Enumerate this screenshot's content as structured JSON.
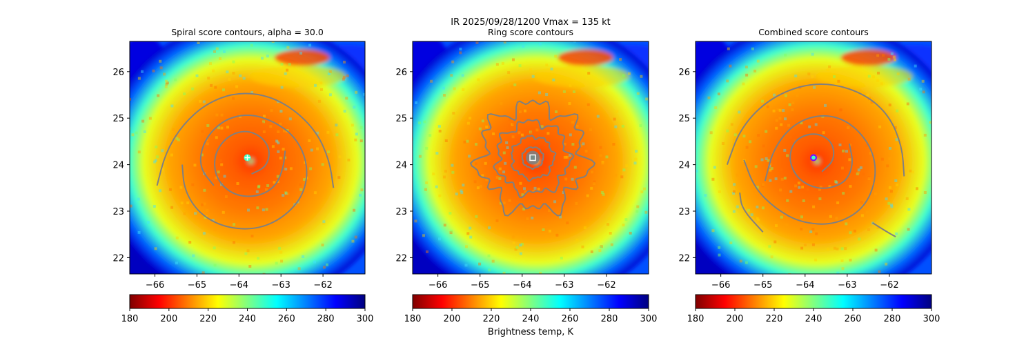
{
  "figure": {
    "suptitle_line1": "IR  2025/09/28/1200    Vmax = 135 kt",
    "colorbar_label": "Brightness temp, K"
  },
  "colormap": {
    "name": "jet_r",
    "stops": [
      "#7f0000",
      "#ff0000",
      "#ff8000",
      "#ffff00",
      "#80ff80",
      "#00ffff",
      "#0080ff",
      "#0000ff",
      "#000080"
    ]
  },
  "contour_color": "#808080",
  "chart_data": [
    {
      "type": "heatmap",
      "panel": "spiral",
      "title": "Spiral score contours, alpha = 30.0",
      "xlim": [
        -66.6,
        -61.0
      ],
      "ylim": [
        21.65,
        26.65
      ],
      "xticks": [
        -66,
        -65,
        -64,
        -63,
        -62
      ],
      "xtick_labels": [
        "−66",
        "−65",
        "−64",
        "−63",
        "−62"
      ],
      "yticks": [
        22,
        23,
        24,
        25,
        26
      ],
      "ytick_labels": [
        "22",
        "23",
        "24",
        "25",
        "26"
      ],
      "center": {
        "lon": -63.8,
        "lat": 24.15
      },
      "marker": {
        "symbol": "plus",
        "color": "#ffffff"
      },
      "contours": [
        {
          "name": "inner spiral",
          "points": [
            [
              -63.7,
              23.8
            ],
            [
              -63.35,
              23.95
            ],
            [
              -63.25,
              24.3
            ],
            [
              -63.45,
              24.6
            ],
            [
              -63.85,
              24.75
            ],
            [
              -64.3,
              24.6
            ],
            [
              -64.6,
              24.2
            ],
            [
              -64.55,
              23.7
            ],
            [
              -64.15,
              23.35
            ],
            [
              -63.6,
              23.3
            ],
            [
              -63.15,
              23.5
            ],
            [
              -62.95,
              23.9
            ],
            [
              -62.9,
              24.3
            ]
          ]
        },
        {
          "name": "middle spiral",
          "points": [
            [
              -64.6,
              23.55
            ],
            [
              -64.95,
              23.95
            ],
            [
              -64.85,
              24.5
            ],
            [
              -64.4,
              24.95
            ],
            [
              -63.8,
              25.1
            ],
            [
              -63.2,
              24.95
            ],
            [
              -62.65,
              24.6
            ],
            [
              -62.35,
              24.0
            ],
            [
              -62.45,
              23.35
            ],
            [
              -62.95,
              22.85
            ],
            [
              -63.6,
              22.6
            ],
            [
              -64.35,
              22.65
            ],
            [
              -64.95,
              22.95
            ],
            [
              -65.3,
              23.45
            ],
            [
              -65.35,
              24.0
            ]
          ]
        },
        {
          "name": "outer spiral",
          "points": [
            [
              -65.95,
              23.55
            ],
            [
              -65.75,
              24.25
            ],
            [
              -65.35,
              24.85
            ],
            [
              -64.8,
              25.3
            ],
            [
              -64.1,
              25.55
            ],
            [
              -63.35,
              25.5
            ],
            [
              -62.7,
              25.2
            ],
            [
              -62.15,
              24.7
            ],
            [
              -61.85,
              24.1
            ],
            [
              -61.75,
              23.5
            ]
          ]
        }
      ]
    },
    {
      "type": "heatmap",
      "panel": "ring",
      "title": "Ring score contours",
      "xlim": [
        -66.6,
        -61.0
      ],
      "ylim": [
        21.65,
        26.65
      ],
      "xticks": [
        -66,
        -65,
        -64,
        -63,
        -62
      ],
      "xtick_labels": [
        "−66",
        "−65",
        "−64",
        "−63",
        "−62"
      ],
      "yticks": [
        22,
        23,
        24,
        25,
        26
      ],
      "ytick_labels": [
        "22",
        "23",
        "24",
        "25",
        "26"
      ],
      "center": {
        "lon": -63.75,
        "lat": 24.15
      },
      "marker": {
        "symbol": "square",
        "color": "#ffffff"
      },
      "ring_contours": [
        {
          "name": "outer ring",
          "radius_deg": 1.25,
          "wobble": 0.22
        },
        {
          "name": "middle ring",
          "radius_deg": 0.85,
          "wobble": 0.16
        },
        {
          "name": "inner ring",
          "radius_deg": 0.5,
          "wobble": 0.12
        },
        {
          "name": "core ring",
          "radius_deg": 0.25,
          "wobble": 0.08
        }
      ]
    },
    {
      "type": "heatmap",
      "panel": "combined",
      "title": "Combined score contours",
      "xlim": [
        -66.6,
        -61.0
      ],
      "ylim": [
        21.65,
        26.65
      ],
      "xticks": [
        -66,
        -65,
        -64,
        -63,
        -62
      ],
      "xtick_labels": [
        "−66",
        "−65",
        "−64",
        "−63",
        "−62"
      ],
      "yticks": [
        22,
        23,
        24,
        25,
        26
      ],
      "ytick_labels": [
        "22",
        "23",
        "24",
        "25",
        "26"
      ],
      "center": {
        "lon": -63.8,
        "lat": 24.15
      },
      "marker": {
        "symbol": "circle",
        "color": "#8000ff"
      },
      "contours": [
        {
          "name": "inner spiral",
          "points": [
            [
              -63.6,
              23.85
            ],
            [
              -63.3,
              24.1
            ],
            [
              -63.35,
              24.5
            ],
            [
              -63.75,
              24.7
            ],
            [
              -64.25,
              24.55
            ],
            [
              -64.4,
              24.1
            ],
            [
              -64.15,
              23.65
            ],
            [
              -63.6,
              23.45
            ],
            [
              -63.05,
              23.6
            ],
            [
              -62.85,
              24.0
            ],
            [
              -62.95,
              24.45
            ]
          ]
        },
        {
          "name": "middle spiral",
          "points": [
            [
              -64.95,
              23.65
            ],
            [
              -64.75,
              24.35
            ],
            [
              -64.25,
              24.9
            ],
            [
              -63.55,
              25.1
            ],
            [
              -62.9,
              24.9
            ],
            [
              -62.4,
              24.35
            ],
            [
              -62.3,
              23.7
            ],
            [
              -62.6,
              23.05
            ],
            [
              -63.3,
              22.7
            ],
            [
              -64.1,
              22.75
            ],
            [
              -64.7,
              23.05
            ],
            [
              -65.2,
              23.5
            ],
            [
              -65.45,
              24.1
            ]
          ]
        },
        {
          "name": "outer spiral",
          "points": [
            [
              -65.85,
              24.0
            ],
            [
              -65.55,
              24.75
            ],
            [
              -64.95,
              25.35
            ],
            [
              -64.15,
              25.7
            ],
            [
              -63.35,
              25.75
            ],
            [
              -62.55,
              25.5
            ],
            [
              -62.0,
              25.05
            ],
            [
              -61.7,
              24.4
            ],
            [
              -61.65,
              23.75
            ]
          ]
        },
        {
          "name": "southern arm",
          "points": [
            [
              -65.0,
              22.55
            ],
            [
              -65.5,
              23.05
            ],
            [
              -65.55,
              23.4
            ]
          ]
        },
        {
          "name": "southeast hook",
          "points": [
            [
              -62.4,
              22.75
            ],
            [
              -62.05,
              22.55
            ],
            [
              -61.85,
              22.45
            ]
          ]
        }
      ]
    }
  ],
  "colorbars": [
    {
      "vmin": 180,
      "vmax": 300,
      "ticks": [
        180,
        200,
        220,
        240,
        260,
        280,
        300
      ],
      "tick_labels": [
        "180",
        "200",
        "220",
        "240",
        "260",
        "280",
        "300"
      ]
    },
    {
      "vmin": 180,
      "vmax": 300,
      "ticks": [
        180,
        200,
        220,
        240,
        260,
        280,
        300
      ],
      "tick_labels": [
        "180",
        "200",
        "220",
        "240",
        "260",
        "280",
        "300"
      ]
    },
    {
      "vmin": 180,
      "vmax": 300,
      "ticks": [
        180,
        200,
        220,
        240,
        260,
        280,
        300
      ],
      "tick_labels": [
        "180",
        "200",
        "220",
        "240",
        "260",
        "280",
        "300"
      ]
    }
  ]
}
